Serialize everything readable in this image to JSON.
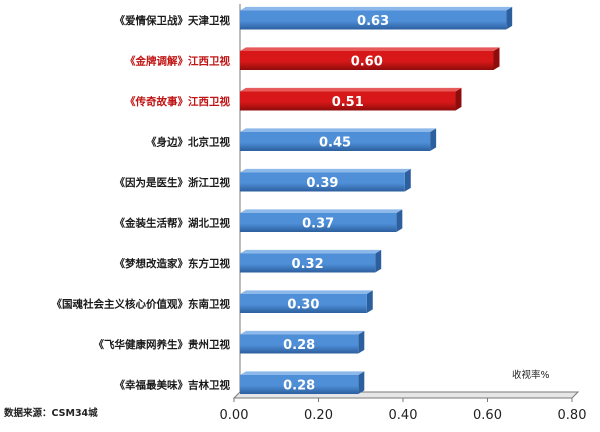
{
  "chart_data": {
    "type": "bar",
    "orientation": "horizontal",
    "categories": [
      "《爱情保卫战》天津卫视",
      "《金牌调解》江西卫视",
      "《传奇故事》江西卫视",
      "《身边》北京卫视",
      "《因为是医生》浙江卫视",
      "《金装生活帮》湖北卫视",
      "《梦想改造家》东方卫视",
      "《国魂社会主义核心价值观》东南卫视",
      "《飞华健康网养生》贵州卫视",
      "《幸福最美味》吉林卫视"
    ],
    "values": [
      0.63,
      0.6,
      0.51,
      0.45,
      0.39,
      0.37,
      0.32,
      0.3,
      0.28,
      0.28
    ],
    "value_labels": [
      "0.63",
      "0.60",
      "0.51",
      "0.45",
      "0.39",
      "0.37",
      "0.32",
      "0.30",
      "0.28",
      "0.28"
    ],
    "highlighted": [
      false,
      true,
      true,
      false,
      false,
      false,
      false,
      false,
      false,
      false
    ],
    "xlim": [
      0,
      0.8
    ],
    "x_ticks": [
      "0.00",
      "0.20",
      "0.40",
      "0.60",
      "0.80"
    ],
    "x_tick_values": [
      0,
      0.2,
      0.4,
      0.6,
      0.8
    ],
    "unit_label": "收视率%",
    "source_note": "数据来源：CSM34城",
    "grid": false,
    "legend": "none",
    "colors": {
      "bar": "#4f8fd8",
      "bar_dark": "#2c5f9e",
      "highlight": "#d81818",
      "highlight_dark": "#8e0c0c",
      "label_normal": "#1a1a1a",
      "label_highlight": "#c01414",
      "axis": "#7a7a7a"
    }
  }
}
